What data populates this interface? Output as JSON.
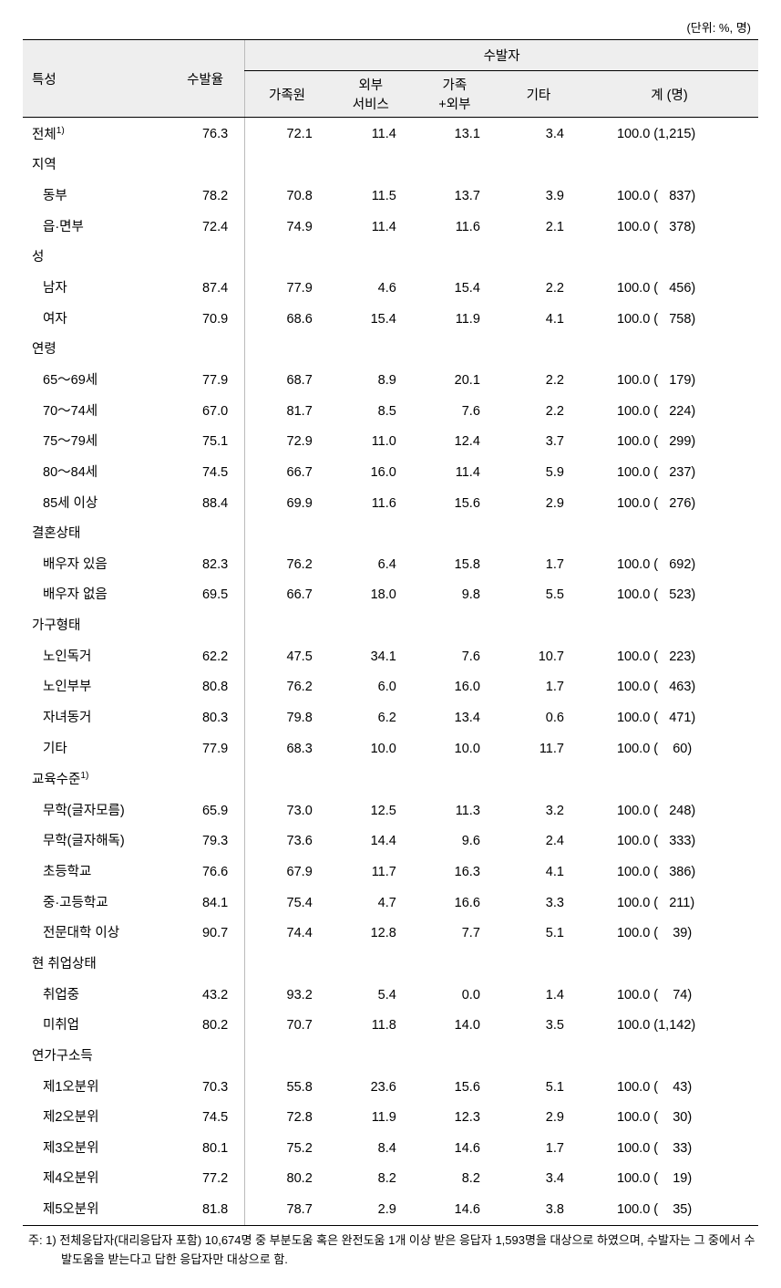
{
  "unit_label": "(단위: %, 명)",
  "headers": {
    "char": "특성",
    "rate": "수발율",
    "caregiver_group": "수발자",
    "sub": [
      "가족원",
      "외부\n서비스",
      "가족\n+외부",
      "기타",
      "계 (명)"
    ]
  },
  "rows": [
    {
      "type": "data",
      "label": "전체",
      "sup": "1)",
      "indent": false,
      "rate": "76.3",
      "c": [
        "72.1",
        "11.4",
        "13.1",
        "3.4"
      ],
      "total": "100.0 (1,215)"
    },
    {
      "type": "section",
      "label": "지역"
    },
    {
      "type": "data",
      "label": "동부",
      "indent": true,
      "rate": "78.2",
      "c": [
        "70.8",
        "11.5",
        "13.7",
        "3.9"
      ],
      "total": "100.0 (   837)"
    },
    {
      "type": "data",
      "label": "읍·면부",
      "indent": true,
      "rate": "72.4",
      "c": [
        "74.9",
        "11.4",
        "11.6",
        "2.1"
      ],
      "total": "100.0 (   378)"
    },
    {
      "type": "section",
      "label": "성"
    },
    {
      "type": "data",
      "label": "남자",
      "indent": true,
      "rate": "87.4",
      "c": [
        "77.9",
        "4.6",
        "15.4",
        "2.2"
      ],
      "total": "100.0 (   456)"
    },
    {
      "type": "data",
      "label": "여자",
      "indent": true,
      "rate": "70.9",
      "c": [
        "68.6",
        "15.4",
        "11.9",
        "4.1"
      ],
      "total": "100.0 (   758)"
    },
    {
      "type": "section",
      "label": "연령"
    },
    {
      "type": "data",
      "label": "65～69세",
      "indent": true,
      "rate": "77.9",
      "c": [
        "68.7",
        "8.9",
        "20.1",
        "2.2"
      ],
      "total": "100.0 (   179)"
    },
    {
      "type": "data",
      "label": "70～74세",
      "indent": true,
      "rate": "67.0",
      "c": [
        "81.7",
        "8.5",
        "7.6",
        "2.2"
      ],
      "total": "100.0 (   224)"
    },
    {
      "type": "data",
      "label": "75～79세",
      "indent": true,
      "rate": "75.1",
      "c": [
        "72.9",
        "11.0",
        "12.4",
        "3.7"
      ],
      "total": "100.0 (   299)"
    },
    {
      "type": "data",
      "label": "80～84세",
      "indent": true,
      "rate": "74.5",
      "c": [
        "66.7",
        "16.0",
        "11.4",
        "5.9"
      ],
      "total": "100.0 (   237)"
    },
    {
      "type": "data",
      "label": "85세 이상",
      "indent": true,
      "rate": "88.4",
      "c": [
        "69.9",
        "11.6",
        "15.6",
        "2.9"
      ],
      "total": "100.0 (   276)"
    },
    {
      "type": "section",
      "label": "결혼상태"
    },
    {
      "type": "data",
      "label": "배우자 있음",
      "indent": true,
      "rate": "82.3",
      "c": [
        "76.2",
        "6.4",
        "15.8",
        "1.7"
      ],
      "total": "100.0 (   692)"
    },
    {
      "type": "data",
      "label": "배우자 없음",
      "indent": true,
      "rate": "69.5",
      "c": [
        "66.7",
        "18.0",
        "9.8",
        "5.5"
      ],
      "total": "100.0 (   523)"
    },
    {
      "type": "section",
      "label": "가구형태"
    },
    {
      "type": "data",
      "label": "노인독거",
      "indent": true,
      "rate": "62.2",
      "c": [
        "47.5",
        "34.1",
        "7.6",
        "10.7"
      ],
      "total": "100.0 (   223)"
    },
    {
      "type": "data",
      "label": "노인부부",
      "indent": true,
      "rate": "80.8",
      "c": [
        "76.2",
        "6.0",
        "16.0",
        "1.7"
      ],
      "total": "100.0 (   463)"
    },
    {
      "type": "data",
      "label": "자녀동거",
      "indent": true,
      "rate": "80.3",
      "c": [
        "79.8",
        "6.2",
        "13.4",
        "0.6"
      ],
      "total": "100.0 (   471)"
    },
    {
      "type": "data",
      "label": "기타",
      "indent": true,
      "rate": "77.9",
      "c": [
        "68.3",
        "10.0",
        "10.0",
        "11.7"
      ],
      "total": "100.0 (    60)"
    },
    {
      "type": "section",
      "label": "교육수준",
      "sup": "1)"
    },
    {
      "type": "data",
      "label": "무학(글자모름)",
      "indent": true,
      "rate": "65.9",
      "c": [
        "73.0",
        "12.5",
        "11.3",
        "3.2"
      ],
      "total": "100.0 (   248)"
    },
    {
      "type": "data",
      "label": "무학(글자해독)",
      "indent": true,
      "rate": "79.3",
      "c": [
        "73.6",
        "14.4",
        "9.6",
        "2.4"
      ],
      "total": "100.0 (   333)"
    },
    {
      "type": "data",
      "label": "초등학교",
      "indent": true,
      "rate": "76.6",
      "c": [
        "67.9",
        "11.7",
        "16.3",
        "4.1"
      ],
      "total": "100.0 (   386)"
    },
    {
      "type": "data",
      "label": "중·고등학교",
      "indent": true,
      "rate": "84.1",
      "c": [
        "75.4",
        "4.7",
        "16.6",
        "3.3"
      ],
      "total": "100.0 (   211)"
    },
    {
      "type": "data",
      "label": "전문대학 이상",
      "indent": true,
      "rate": "90.7",
      "c": [
        "74.4",
        "12.8",
        "7.7",
        "5.1"
      ],
      "total": "100.0 (    39)"
    },
    {
      "type": "section",
      "label": "현 취업상태"
    },
    {
      "type": "data",
      "label": "취업중",
      "indent": true,
      "rate": "43.2",
      "c": [
        "93.2",
        "5.4",
        "0.0",
        "1.4"
      ],
      "total": "100.0 (    74)"
    },
    {
      "type": "data",
      "label": "미취업",
      "indent": true,
      "rate": "80.2",
      "c": [
        "70.7",
        "11.8",
        "14.0",
        "3.5"
      ],
      "total": "100.0 (1,142)"
    },
    {
      "type": "section",
      "label": "연가구소득"
    },
    {
      "type": "data",
      "label": "제1오분위",
      "indent": true,
      "rate": "70.3",
      "c": [
        "55.8",
        "23.6",
        "15.6",
        "5.1"
      ],
      "total": "100.0 (    43)"
    },
    {
      "type": "data",
      "label": "제2오분위",
      "indent": true,
      "rate": "74.5",
      "c": [
        "72.8",
        "11.9",
        "12.3",
        "2.9"
      ],
      "total": "100.0 (    30)"
    },
    {
      "type": "data",
      "label": "제3오분위",
      "indent": true,
      "rate": "80.1",
      "c": [
        "75.2",
        "8.4",
        "14.6",
        "1.7"
      ],
      "total": "100.0 (    33)"
    },
    {
      "type": "data",
      "label": "제4오분위",
      "indent": true,
      "rate": "77.2",
      "c": [
        "80.2",
        "8.2",
        "8.2",
        "3.4"
      ],
      "total": "100.0 (    19)"
    },
    {
      "type": "data",
      "label": "제5오분위",
      "indent": true,
      "rate": "81.8",
      "c": [
        "78.7",
        "2.9",
        "14.6",
        "3.8"
      ],
      "total": "100.0 (    35)",
      "last": true
    }
  ],
  "footnote": "주: 1) 전체응답자(대리응답자 포함) 10,674명 중 부분도움 혹은 완전도움 1개 이상 받은 응답자 1,593명을 대상으로 하였으며, 수발자는 그 중에서 수발도움을 받는다고 답한 응답자만 대상으로 함.",
  "colors": {
    "header_bg": "#eeeeee",
    "border": "#000000",
    "vbar": "#bbbbbb",
    "text": "#000000",
    "background": "#ffffff"
  },
  "font_sizes": {
    "body": 14.5,
    "unit": 13,
    "footnote": 13
  }
}
